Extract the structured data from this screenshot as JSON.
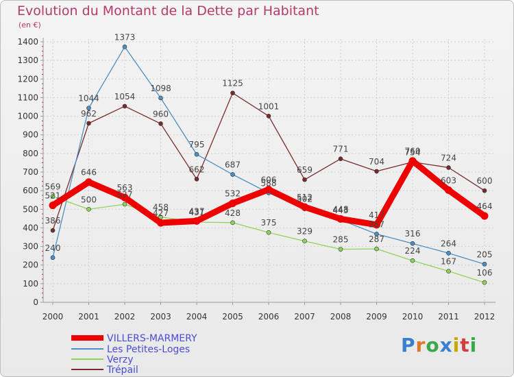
{
  "title": "Evolution du Montant de la Dette par Habitant",
  "subtitle": "(en €)",
  "logo_text": "Proxiti",
  "chart_data": {
    "type": "line",
    "title": "Evolution du Montant de la Dette par Habitant",
    "ylabel": "(en €)",
    "xlabel": "",
    "x": [
      "2000",
      "2001",
      "2002",
      "2003",
      "2004",
      "2005",
      "2006",
      "2007",
      "2008",
      "2009",
      "2010",
      "2011",
      "2012"
    ],
    "ylim": [
      0,
      1400
    ],
    "yticks": [
      0,
      100,
      200,
      300,
      400,
      500,
      600,
      700,
      800,
      900,
      1000,
      1100,
      1200,
      1300,
      1400
    ],
    "grid": true,
    "legend": "bottom-left",
    "series": [
      {
        "name": "VILLERS-MARMERY",
        "color": "#ee0000",
        "values": [
          521,
          646,
          563,
          427,
          437,
          532,
          606,
          512,
          448,
          417,
          760,
          603,
          464
        ]
      },
      {
        "name": "Les Petites-Loges",
        "color": "#4a8fc4",
        "values": [
          240,
          1044,
          1373,
          1098,
          795,
          687,
          588,
          502,
          443,
          367,
          316,
          264,
          205
        ]
      },
      {
        "name": "Verzy",
        "color": "#8fd45a",
        "values": [
          569,
          500,
          527,
          458,
          431,
          428,
          375,
          329,
          285,
          287,
          224,
          167,
          106
        ]
      },
      {
        "name": "Trépail",
        "color": "#7a2a2a",
        "values": [
          386,
          962,
          1054,
          960,
          662,
          1125,
          1001,
          659,
          771,
          704,
          754,
          724,
          600
        ]
      }
    ]
  }
}
